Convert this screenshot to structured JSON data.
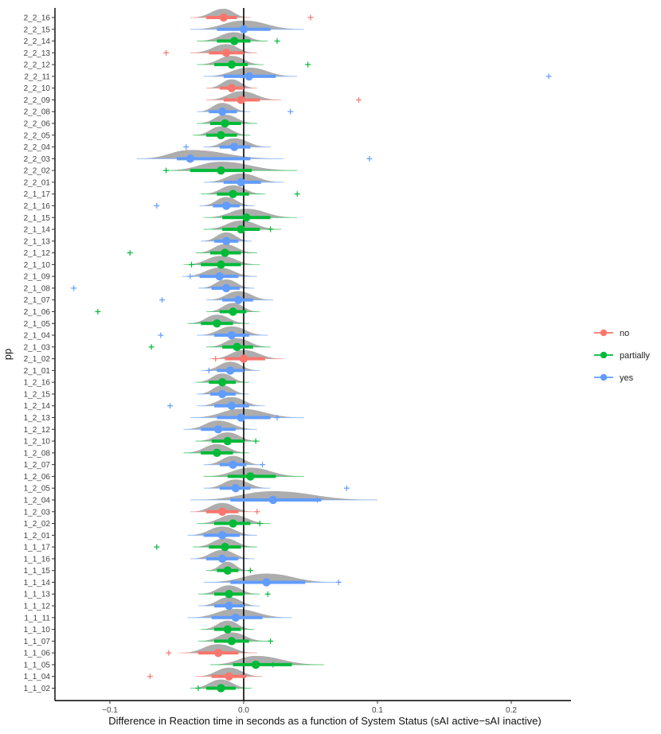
{
  "colors": {
    "no": "#F8766D",
    "partially": "#00BA38",
    "yes": "#619CFF",
    "density": "#a9a9a9",
    "zero_line": "#000000"
  },
  "chart_data": {
    "type": "scatter",
    "xlabel": "Difference in Reaction time in seconds as a function of System Status (sAI active−sAI inactive)",
    "ylabel": "pp",
    "xlim": [
      -0.14,
      0.245
    ],
    "x_ticks": [
      -0.1,
      0.0,
      0.1,
      0.2
    ],
    "x_tick_labels": [
      "−0.1",
      "0.0",
      "0.1",
      "0.2"
    ],
    "reference_line_x": 0,
    "legend": {
      "position": "right",
      "entries": [
        "no",
        "partially",
        "yes"
      ]
    },
    "participants": [
      {
        "pp": "2_2_16",
        "group": "no",
        "point": -0.015,
        "lo66": -0.028,
        "hi66": -0.005,
        "lo95": -0.04,
        "hi95": 0.005,
        "out": 0.05
      },
      {
        "pp": "2_2_15",
        "group": "yes",
        "point": 0.0,
        "lo66": -0.02,
        "hi66": 0.02,
        "lo95": -0.04,
        "hi95": 0.045,
        "out": null
      },
      {
        "pp": "2_2_14",
        "group": "partially",
        "point": -0.007,
        "lo66": -0.02,
        "hi66": 0.005,
        "lo95": -0.035,
        "hi95": 0.018,
        "out": 0.025
      },
      {
        "pp": "2_2_13",
        "group": "no",
        "point": -0.013,
        "lo66": -0.026,
        "hi66": 0.0,
        "lo95": -0.04,
        "hi95": 0.01,
        "out": -0.058
      },
      {
        "pp": "2_2_12",
        "group": "partially",
        "point": -0.009,
        "lo66": -0.022,
        "hi66": 0.003,
        "lo95": -0.035,
        "hi95": 0.015,
        "out": 0.048
      },
      {
        "pp": "2_2_11",
        "group": "yes",
        "point": 0.004,
        "lo66": -0.015,
        "hi66": 0.024,
        "lo95": -0.03,
        "hi95": 0.04,
        "out": 0.228
      },
      {
        "pp": "2_2_10",
        "group": "no",
        "point": -0.009,
        "lo66": -0.018,
        "hi66": 0.0,
        "lo95": -0.028,
        "hi95": 0.01,
        "out": null
      },
      {
        "pp": "2_2_09",
        "group": "no",
        "point": -0.002,
        "lo66": -0.015,
        "hi66": 0.012,
        "lo95": -0.028,
        "hi95": 0.028,
        "out": 0.086
      },
      {
        "pp": "2_2_08",
        "group": "yes",
        "point": -0.016,
        "lo66": -0.026,
        "hi66": -0.005,
        "lo95": -0.035,
        "hi95": 0.005,
        "out": 0.035
      },
      {
        "pp": "2_2_06",
        "group": "partially",
        "point": -0.014,
        "lo66": -0.025,
        "hi66": -0.002,
        "lo95": -0.035,
        "hi95": 0.01,
        "out": null
      },
      {
        "pp": "2_2_05",
        "group": "partially",
        "point": -0.017,
        "lo66": -0.028,
        "hi66": -0.005,
        "lo95": -0.038,
        "hi95": 0.005,
        "out": null
      },
      {
        "pp": "2_2_04",
        "group": "yes",
        "point": -0.007,
        "lo66": -0.018,
        "hi66": 0.005,
        "lo95": -0.03,
        "hi95": 0.02,
        "out": -0.043
      },
      {
        "pp": "2_2_03",
        "group": "yes",
        "point": -0.04,
        "lo66": -0.05,
        "hi66": 0.005,
        "lo95": -0.08,
        "hi95": 0.03,
        "out": 0.094
      },
      {
        "pp": "2_2_02",
        "group": "partially",
        "point": -0.017,
        "lo66": -0.04,
        "hi66": 0.006,
        "lo95": -0.06,
        "hi95": 0.04,
        "out": -0.058
      },
      {
        "pp": "2_2_01",
        "group": "yes",
        "point": -0.002,
        "lo66": -0.015,
        "hi66": 0.013,
        "lo95": -0.03,
        "hi95": 0.03,
        "out": null
      },
      {
        "pp": "2_1_17",
        "group": "partially",
        "point": -0.008,
        "lo66": -0.02,
        "hi66": 0.004,
        "lo95": -0.032,
        "hi95": 0.016,
        "out": 0.04
      },
      {
        "pp": "2_1_16",
        "group": "yes",
        "point": -0.013,
        "lo66": -0.023,
        "hi66": -0.003,
        "lo95": -0.033,
        "hi95": 0.008,
        "out": -0.065
      },
      {
        "pp": "2_1_15",
        "group": "partially",
        "point": 0.002,
        "lo66": -0.016,
        "hi66": 0.02,
        "lo95": -0.03,
        "hi95": 0.04,
        "out": null
      },
      {
        "pp": "2_1_14",
        "group": "partially",
        "point": -0.002,
        "lo66": -0.016,
        "hi66": 0.012,
        "lo95": -0.03,
        "hi95": 0.028,
        "out": 0.02
      },
      {
        "pp": "2_1_13",
        "group": "yes",
        "point": -0.013,
        "lo66": -0.022,
        "hi66": -0.004,
        "lo95": -0.032,
        "hi95": 0.006,
        "out": null
      },
      {
        "pp": "2_1_12",
        "group": "partially",
        "point": -0.014,
        "lo66": -0.025,
        "hi66": -0.002,
        "lo95": -0.036,
        "hi95": 0.01,
        "out": -0.085
      },
      {
        "pp": "2_1_10",
        "group": "partially",
        "point": -0.017,
        "lo66": -0.032,
        "hi66": -0.002,
        "lo95": -0.045,
        "hi95": 0.012,
        "out": -0.039
      },
      {
        "pp": "2_1_09",
        "group": "yes",
        "point": -0.018,
        "lo66": -0.033,
        "hi66": -0.004,
        "lo95": -0.046,
        "hi95": 0.01,
        "out": -0.04
      },
      {
        "pp": "2_1_08",
        "group": "yes",
        "point": -0.013,
        "lo66": -0.024,
        "hi66": -0.003,
        "lo95": -0.034,
        "hi95": 0.008,
        "out": -0.127
      },
      {
        "pp": "2_1_07",
        "group": "yes",
        "point": -0.004,
        "lo66": -0.016,
        "hi66": 0.007,
        "lo95": -0.028,
        "hi95": 0.022,
        "out": -0.061
      },
      {
        "pp": "2_1_06",
        "group": "partially",
        "point": -0.008,
        "lo66": -0.018,
        "hi66": 0.002,
        "lo95": -0.028,
        "hi95": 0.012,
        "out": -0.109
      },
      {
        "pp": "2_1_05",
        "group": "partially",
        "point": -0.02,
        "lo66": -0.032,
        "hi66": -0.008,
        "lo95": -0.042,
        "hi95": 0.004,
        "out": null
      },
      {
        "pp": "2_1_04",
        "group": "yes",
        "point": -0.009,
        "lo66": -0.022,
        "hi66": 0.004,
        "lo95": -0.035,
        "hi95": 0.018,
        "out": -0.062
      },
      {
        "pp": "2_1_03",
        "group": "partially",
        "point": -0.005,
        "lo66": -0.016,
        "hi66": 0.007,
        "lo95": -0.028,
        "hi95": 0.02,
        "out": -0.069
      },
      {
        "pp": "2_1_02",
        "group": "no",
        "point": 0.0,
        "lo66": -0.014,
        "hi66": 0.016,
        "lo95": -0.025,
        "hi95": 0.03,
        "out": -0.021
      },
      {
        "pp": "2_1_01",
        "group": "yes",
        "point": -0.01,
        "lo66": -0.02,
        "hi66": 0.0,
        "lo95": -0.032,
        "hi95": 0.012,
        "out": -0.026
      },
      {
        "pp": "1_2_16",
        "group": "partially",
        "point": -0.016,
        "lo66": -0.026,
        "hi66": -0.006,
        "lo95": -0.036,
        "hi95": 0.004,
        "out": null
      },
      {
        "pp": "1_2_15",
        "group": "yes",
        "point": -0.016,
        "lo66": -0.025,
        "hi66": -0.006,
        "lo95": -0.035,
        "hi95": 0.004,
        "out": null
      },
      {
        "pp": "1_2_14",
        "group": "yes",
        "point": -0.009,
        "lo66": -0.022,
        "hi66": 0.004,
        "lo95": -0.035,
        "hi95": 0.016,
        "out": -0.055
      },
      {
        "pp": "1_2_13",
        "group": "yes",
        "point": -0.002,
        "lo66": -0.02,
        "hi66": 0.02,
        "lo95": -0.04,
        "hi95": 0.045,
        "out": 0.025
      },
      {
        "pp": "1_2_12",
        "group": "yes",
        "point": -0.019,
        "lo66": -0.032,
        "hi66": -0.006,
        "lo95": -0.045,
        "hi95": 0.01,
        "out": null
      },
      {
        "pp": "1_2_10",
        "group": "partially",
        "point": -0.012,
        "lo66": -0.024,
        "hi66": 0.0,
        "lo95": -0.036,
        "hi95": 0.012,
        "out": 0.009
      },
      {
        "pp": "1_2_08",
        "group": "partially",
        "point": -0.02,
        "lo66": -0.032,
        "hi66": -0.008,
        "lo95": -0.045,
        "hi95": 0.004,
        "out": null
      },
      {
        "pp": "1_2_07",
        "group": "yes",
        "point": -0.008,
        "lo66": -0.018,
        "hi66": 0.002,
        "lo95": -0.03,
        "hi95": 0.014,
        "out": 0.014
      },
      {
        "pp": "1_2_06",
        "group": "partially",
        "point": 0.005,
        "lo66": -0.012,
        "hi66": 0.024,
        "lo95": -0.03,
        "hi95": 0.045,
        "out": null
      },
      {
        "pp": "1_2_05",
        "group": "yes",
        "point": -0.006,
        "lo66": -0.018,
        "hi66": 0.005,
        "lo95": -0.03,
        "hi95": 0.02,
        "out": 0.077
      },
      {
        "pp": "1_2_04",
        "group": "yes",
        "point": 0.022,
        "lo66": -0.01,
        "hi66": 0.058,
        "lo95": -0.04,
        "hi95": 0.1,
        "out": 0.055
      },
      {
        "pp": "1_2_03",
        "group": "no",
        "point": -0.016,
        "lo66": -0.028,
        "hi66": -0.004,
        "lo95": -0.04,
        "hi95": 0.008,
        "out": 0.01
      },
      {
        "pp": "1_2_02",
        "group": "partially",
        "point": -0.008,
        "lo66": -0.022,
        "hi66": 0.005,
        "lo95": -0.035,
        "hi95": 0.02,
        "out": 0.012
      },
      {
        "pp": "1_2_01",
        "group": "yes",
        "point": -0.016,
        "lo66": -0.03,
        "hi66": -0.003,
        "lo95": -0.042,
        "hi95": 0.01,
        "out": null
      },
      {
        "pp": "1_1_17",
        "group": "partially",
        "point": -0.014,
        "lo66": -0.026,
        "hi66": -0.002,
        "lo95": -0.038,
        "hi95": 0.01,
        "out": -0.065
      },
      {
        "pp": "1_1_16",
        "group": "yes",
        "point": -0.016,
        "lo66": -0.028,
        "hi66": -0.004,
        "lo95": -0.04,
        "hi95": 0.008,
        "out": null
      },
      {
        "pp": "1_1_15",
        "group": "partially",
        "point": -0.012,
        "lo66": -0.02,
        "hi66": -0.004,
        "lo95": -0.028,
        "hi95": 0.004,
        "out": 0.005
      },
      {
        "pp": "1_1_14",
        "group": "yes",
        "point": 0.017,
        "lo66": -0.01,
        "hi66": 0.046,
        "lo95": -0.03,
        "hi95": 0.07,
        "out": 0.071
      },
      {
        "pp": "1_1_13",
        "group": "partially",
        "point": -0.011,
        "lo66": -0.022,
        "hi66": 0.0,
        "lo95": -0.034,
        "hi95": 0.012,
        "out": 0.018
      },
      {
        "pp": "1_1_12",
        "group": "yes",
        "point": -0.011,
        "lo66": -0.022,
        "hi66": 0.0,
        "lo95": -0.034,
        "hi95": 0.012,
        "out": null
      },
      {
        "pp": "1_1_11",
        "group": "yes",
        "point": -0.006,
        "lo66": -0.024,
        "hi66": 0.014,
        "lo95": -0.042,
        "hi95": 0.036,
        "out": null
      },
      {
        "pp": "1_1_10",
        "group": "partially",
        "point": -0.012,
        "lo66": -0.022,
        "hi66": -0.002,
        "lo95": -0.032,
        "hi95": 0.008,
        "out": null
      },
      {
        "pp": "1_1_07",
        "group": "partially",
        "point": -0.009,
        "lo66": -0.022,
        "hi66": 0.004,
        "lo95": -0.034,
        "hi95": 0.018,
        "out": 0.02
      },
      {
        "pp": "1_1_06",
        "group": "no",
        "point": -0.019,
        "lo66": -0.034,
        "hi66": -0.004,
        "lo95": -0.048,
        "hi95": 0.01,
        "out": -0.056
      },
      {
        "pp": "1_1_05",
        "group": "partially",
        "point": 0.009,
        "lo66": -0.008,
        "hi66": 0.036,
        "lo95": -0.025,
        "hi95": 0.06,
        "out": 0.022
      },
      {
        "pp": "1_1_04",
        "group": "no",
        "point": -0.011,
        "lo66": -0.024,
        "hi66": 0.002,
        "lo95": -0.036,
        "hi95": 0.014,
        "out": -0.07
      },
      {
        "pp": "1_1_02",
        "group": "partially",
        "point": -0.017,
        "lo66": -0.028,
        "hi66": -0.006,
        "lo95": -0.04,
        "hi95": 0.006,
        "out": -0.034
      }
    ]
  }
}
